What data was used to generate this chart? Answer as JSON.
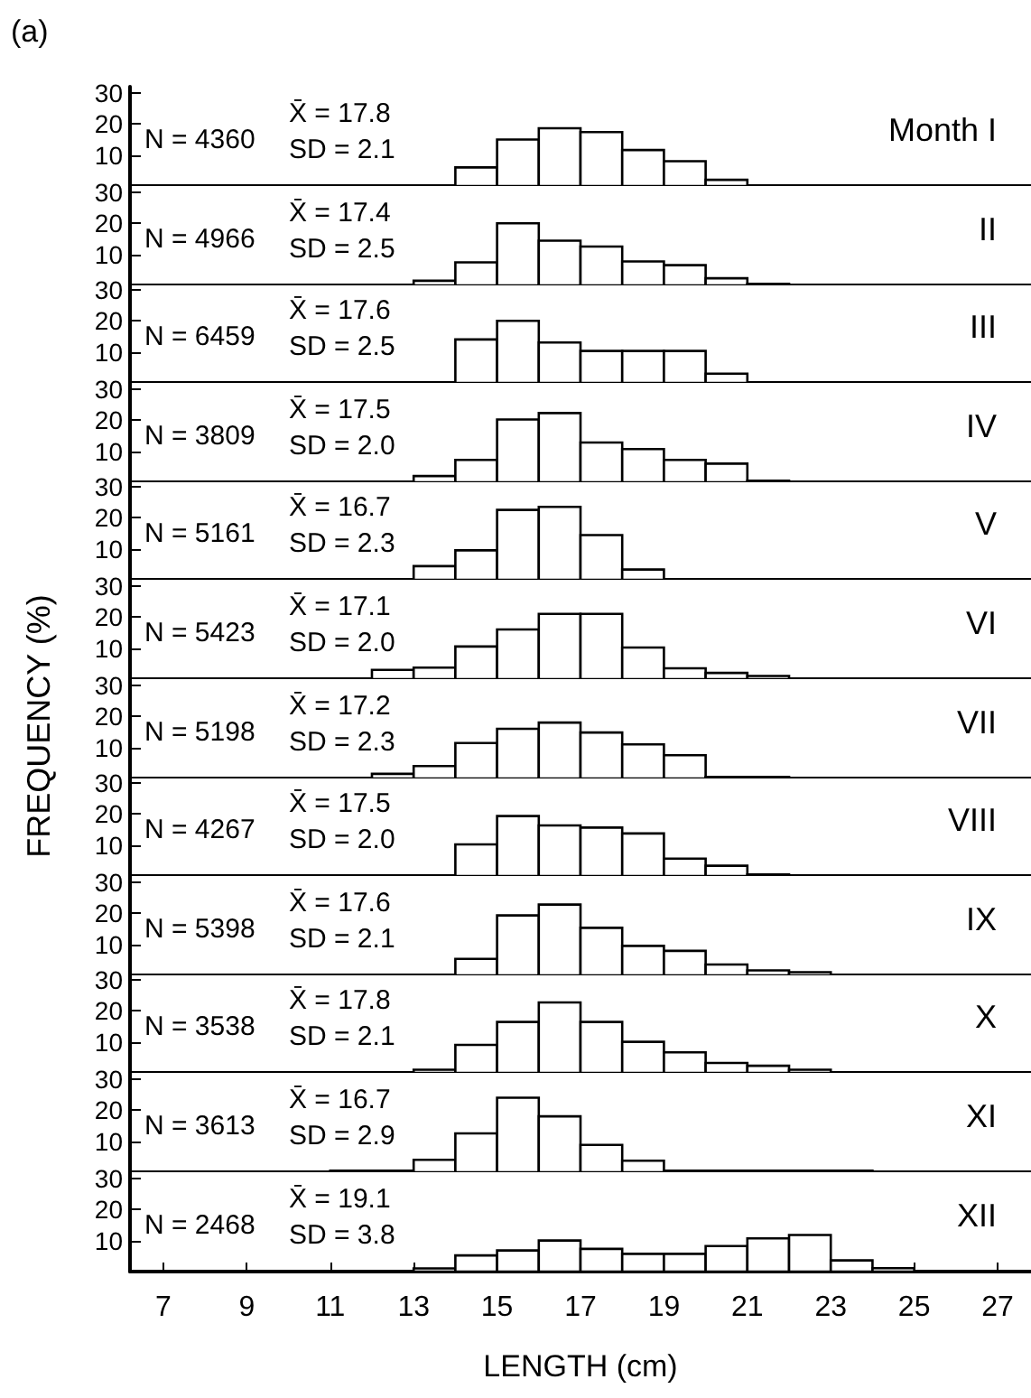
{
  "chart_data": [
    {
      "type": "histogram",
      "title": "Month I",
      "annotations": [
        "N = 4360",
        "X̄ = 17.8",
        "SD = 2.1",
        "(a)"
      ],
      "bins": [
        14,
        15,
        16,
        17,
        18,
        19,
        20,
        21
      ],
      "values": [
        6,
        15,
        18.6,
        17.4,
        11.6,
        8,
        2
      ],
      "color": "#ffffff",
      "xlim": [
        6.2,
        27.8
      ],
      "ylim": [
        0,
        32
      ],
      "yticks": [
        10,
        20,
        30
      ],
      "tick_labels": "y"
    },
    {
      "type": "histogram",
      "title": "II",
      "annotations": [
        "N = 4966",
        "X̄ = 17.4",
        "SD = 2.5"
      ],
      "bins": [
        13,
        14,
        15,
        16,
        17,
        18,
        19,
        20,
        21,
        22
      ],
      "values": [
        1.5,
        7.4,
        20,
        14.4,
        12.5,
        7.7,
        6.5,
        2.3,
        0.5
      ],
      "color": "#ffffff",
      "xlim": [
        6.2,
        27.8
      ],
      "ylim": [
        0,
        32
      ],
      "yticks": [
        10,
        20,
        30
      ],
      "tick_labels": "y"
    },
    {
      "type": "histogram",
      "title": "III",
      "annotations": [
        "N = 6459",
        "X̄ = 17.6",
        "SD = 2.5"
      ],
      "bins": [
        14,
        15,
        16,
        17,
        18,
        19,
        20,
        21
      ],
      "values": [
        14,
        20,
        13,
        10.3,
        10.3,
        10.3,
        3
      ],
      "color": "#ffffff",
      "xlim": [
        6.2,
        27.8
      ],
      "ylim": [
        0,
        32
      ],
      "yticks": [
        10,
        20,
        30
      ],
      "tick_labels": "y"
    },
    {
      "type": "histogram",
      "title": "IV",
      "annotations": [
        "N = 3809",
        "X̄ = 17.5",
        "SD = 2.0"
      ],
      "bins": [
        13,
        14,
        15,
        16,
        17,
        18,
        19,
        20,
        21,
        22
      ],
      "values": [
        2,
        7.2,
        20.2,
        22.3,
        12.8,
        10.7,
        7.2,
        6,
        0.5
      ],
      "color": "#ffffff",
      "xlim": [
        6.2,
        27.8
      ],
      "ylim": [
        0,
        32
      ],
      "yticks": [
        10,
        20,
        30
      ],
      "tick_labels": "y"
    },
    {
      "type": "histogram",
      "title": "V",
      "annotations": [
        "N = 5161",
        "X̄ = 16.7",
        "SD = 2.3"
      ],
      "bins": [
        13,
        14,
        15,
        16,
        17,
        18,
        19
      ],
      "values": [
        4.4,
        9.5,
        22.5,
        23.5,
        14.4,
        3.3
      ],
      "color": "#ffffff",
      "xlim": [
        6.2,
        27.8
      ],
      "ylim": [
        0,
        32
      ],
      "yticks": [
        10,
        20,
        30
      ],
      "tick_labels": "y"
    },
    {
      "type": "histogram",
      "title": "VI",
      "ylabel": "FREQUENCY (%)",
      "annotations": [
        "N = 5423",
        "X̄ = 17.1",
        "SD = 2.0"
      ],
      "bins": [
        12,
        13,
        14,
        15,
        16,
        17,
        18,
        19,
        20,
        21,
        22
      ],
      "values": [
        3,
        3.7,
        10.5,
        16,
        21,
        21,
        10.2,
        3.5,
        2,
        1
      ],
      "color": "#ffffff",
      "xlim": [
        6.2,
        27.8
      ],
      "ylim": [
        0,
        32
      ],
      "yticks": [
        10,
        20,
        30
      ],
      "tick_labels": "y"
    },
    {
      "type": "histogram",
      "title": "VII",
      "annotations": [
        "N = 5198",
        "X̄ = 17.2",
        "SD = 2.3"
      ],
      "bins": [
        12,
        13,
        14,
        15,
        16,
        17,
        18,
        19,
        20,
        21,
        22
      ],
      "values": [
        1.5,
        4,
        11.4,
        16,
        18,
        14.8,
        11,
        7.5,
        0.5,
        0.5
      ],
      "color": "#ffffff",
      "xlim": [
        6.2,
        27.8
      ],
      "ylim": [
        0,
        32
      ],
      "yticks": [
        10,
        20,
        30
      ],
      "tick_labels": "y"
    },
    {
      "type": "histogram",
      "title": "VIII",
      "annotations": [
        "N = 4267",
        "X̄ = 17.5",
        "SD = 2.0"
      ],
      "bins": [
        14,
        15,
        16,
        17,
        18,
        19,
        20,
        21,
        22
      ],
      "values": [
        10.2,
        19.3,
        16.3,
        15.6,
        13.7,
        5.6,
        3.3,
        0.5
      ],
      "color": "#ffffff",
      "xlim": [
        6.2,
        27.8
      ],
      "ylim": [
        0,
        32
      ],
      "yticks": [
        10,
        20,
        30
      ],
      "tick_labels": "y"
    },
    {
      "type": "histogram",
      "title": "IX",
      "annotations": [
        "N = 5398",
        "X̄ = 17.6",
        "SD = 2.1"
      ],
      "bins": [
        14,
        15,
        16,
        17,
        18,
        19,
        20,
        21,
        22,
        23
      ],
      "values": [
        5.3,
        19.3,
        22.8,
        15.3,
        9.5,
        7.9,
        3.5,
        1.6,
        1
      ],
      "color": "#ffffff",
      "xlim": [
        6.2,
        27.8
      ],
      "ylim": [
        0,
        32
      ],
      "yticks": [
        10,
        20,
        30
      ],
      "tick_labels": "y"
    },
    {
      "type": "histogram",
      "title": "X",
      "annotations": [
        "N = 3538",
        "X̄ = 17.8",
        "SD = 2.1"
      ],
      "bins": [
        13,
        14,
        15,
        16,
        17,
        18,
        19,
        20,
        21,
        22,
        23
      ],
      "values": [
        1,
        9,
        16.4,
        22.7,
        16.4,
        10,
        6.6,
        3.2,
        2.3,
        1
      ],
      "color": "#ffffff",
      "xlim": [
        6.2,
        27.8
      ],
      "ylim": [
        0,
        32
      ],
      "yticks": [
        10,
        20,
        30
      ],
      "tick_labels": "y"
    },
    {
      "type": "histogram",
      "title": "XI",
      "annotations": [
        "N = 3613",
        "X̄ = 16.7",
        "SD = 2.9"
      ],
      "bins": [
        11,
        12,
        13,
        14,
        15,
        16,
        17,
        18,
        19,
        20,
        21,
        22,
        23,
        24
      ],
      "values": [
        0.5,
        0.5,
        4,
        12.5,
        24,
        18,
        8.8,
        3.7,
        0.5,
        0.5,
        0.5,
        0.5,
        0.5
      ],
      "color": "#ffffff",
      "xlim": [
        6.2,
        27.8
      ],
      "ylim": [
        0,
        32
      ],
      "yticks": [
        10,
        20,
        30
      ],
      "tick_labels": "y"
    },
    {
      "type": "histogram",
      "title": "XII",
      "xlabel": "LENGTH (cm)",
      "annotations": [
        "N = 2468",
        "X̄ = 19.1",
        "SD = 3.8"
      ],
      "bins": [
        13,
        14,
        15,
        16,
        17,
        18,
        19,
        20,
        21,
        22,
        23,
        24,
        25
      ],
      "values": [
        1,
        5.2,
        6.8,
        10,
        7.3,
        5.7,
        5.7,
        8.2,
        10.7,
        11.8,
        3.6,
        1.1
      ],
      "color": "#ffffff",
      "xlim": [
        6.2,
        27.8
      ],
      "ylim": [
        0,
        32
      ],
      "yticks": [
        10,
        20,
        30
      ],
      "xticks": [
        7,
        9,
        11,
        13,
        15,
        17,
        19,
        21,
        23,
        25,
        27
      ]
    }
  ]
}
